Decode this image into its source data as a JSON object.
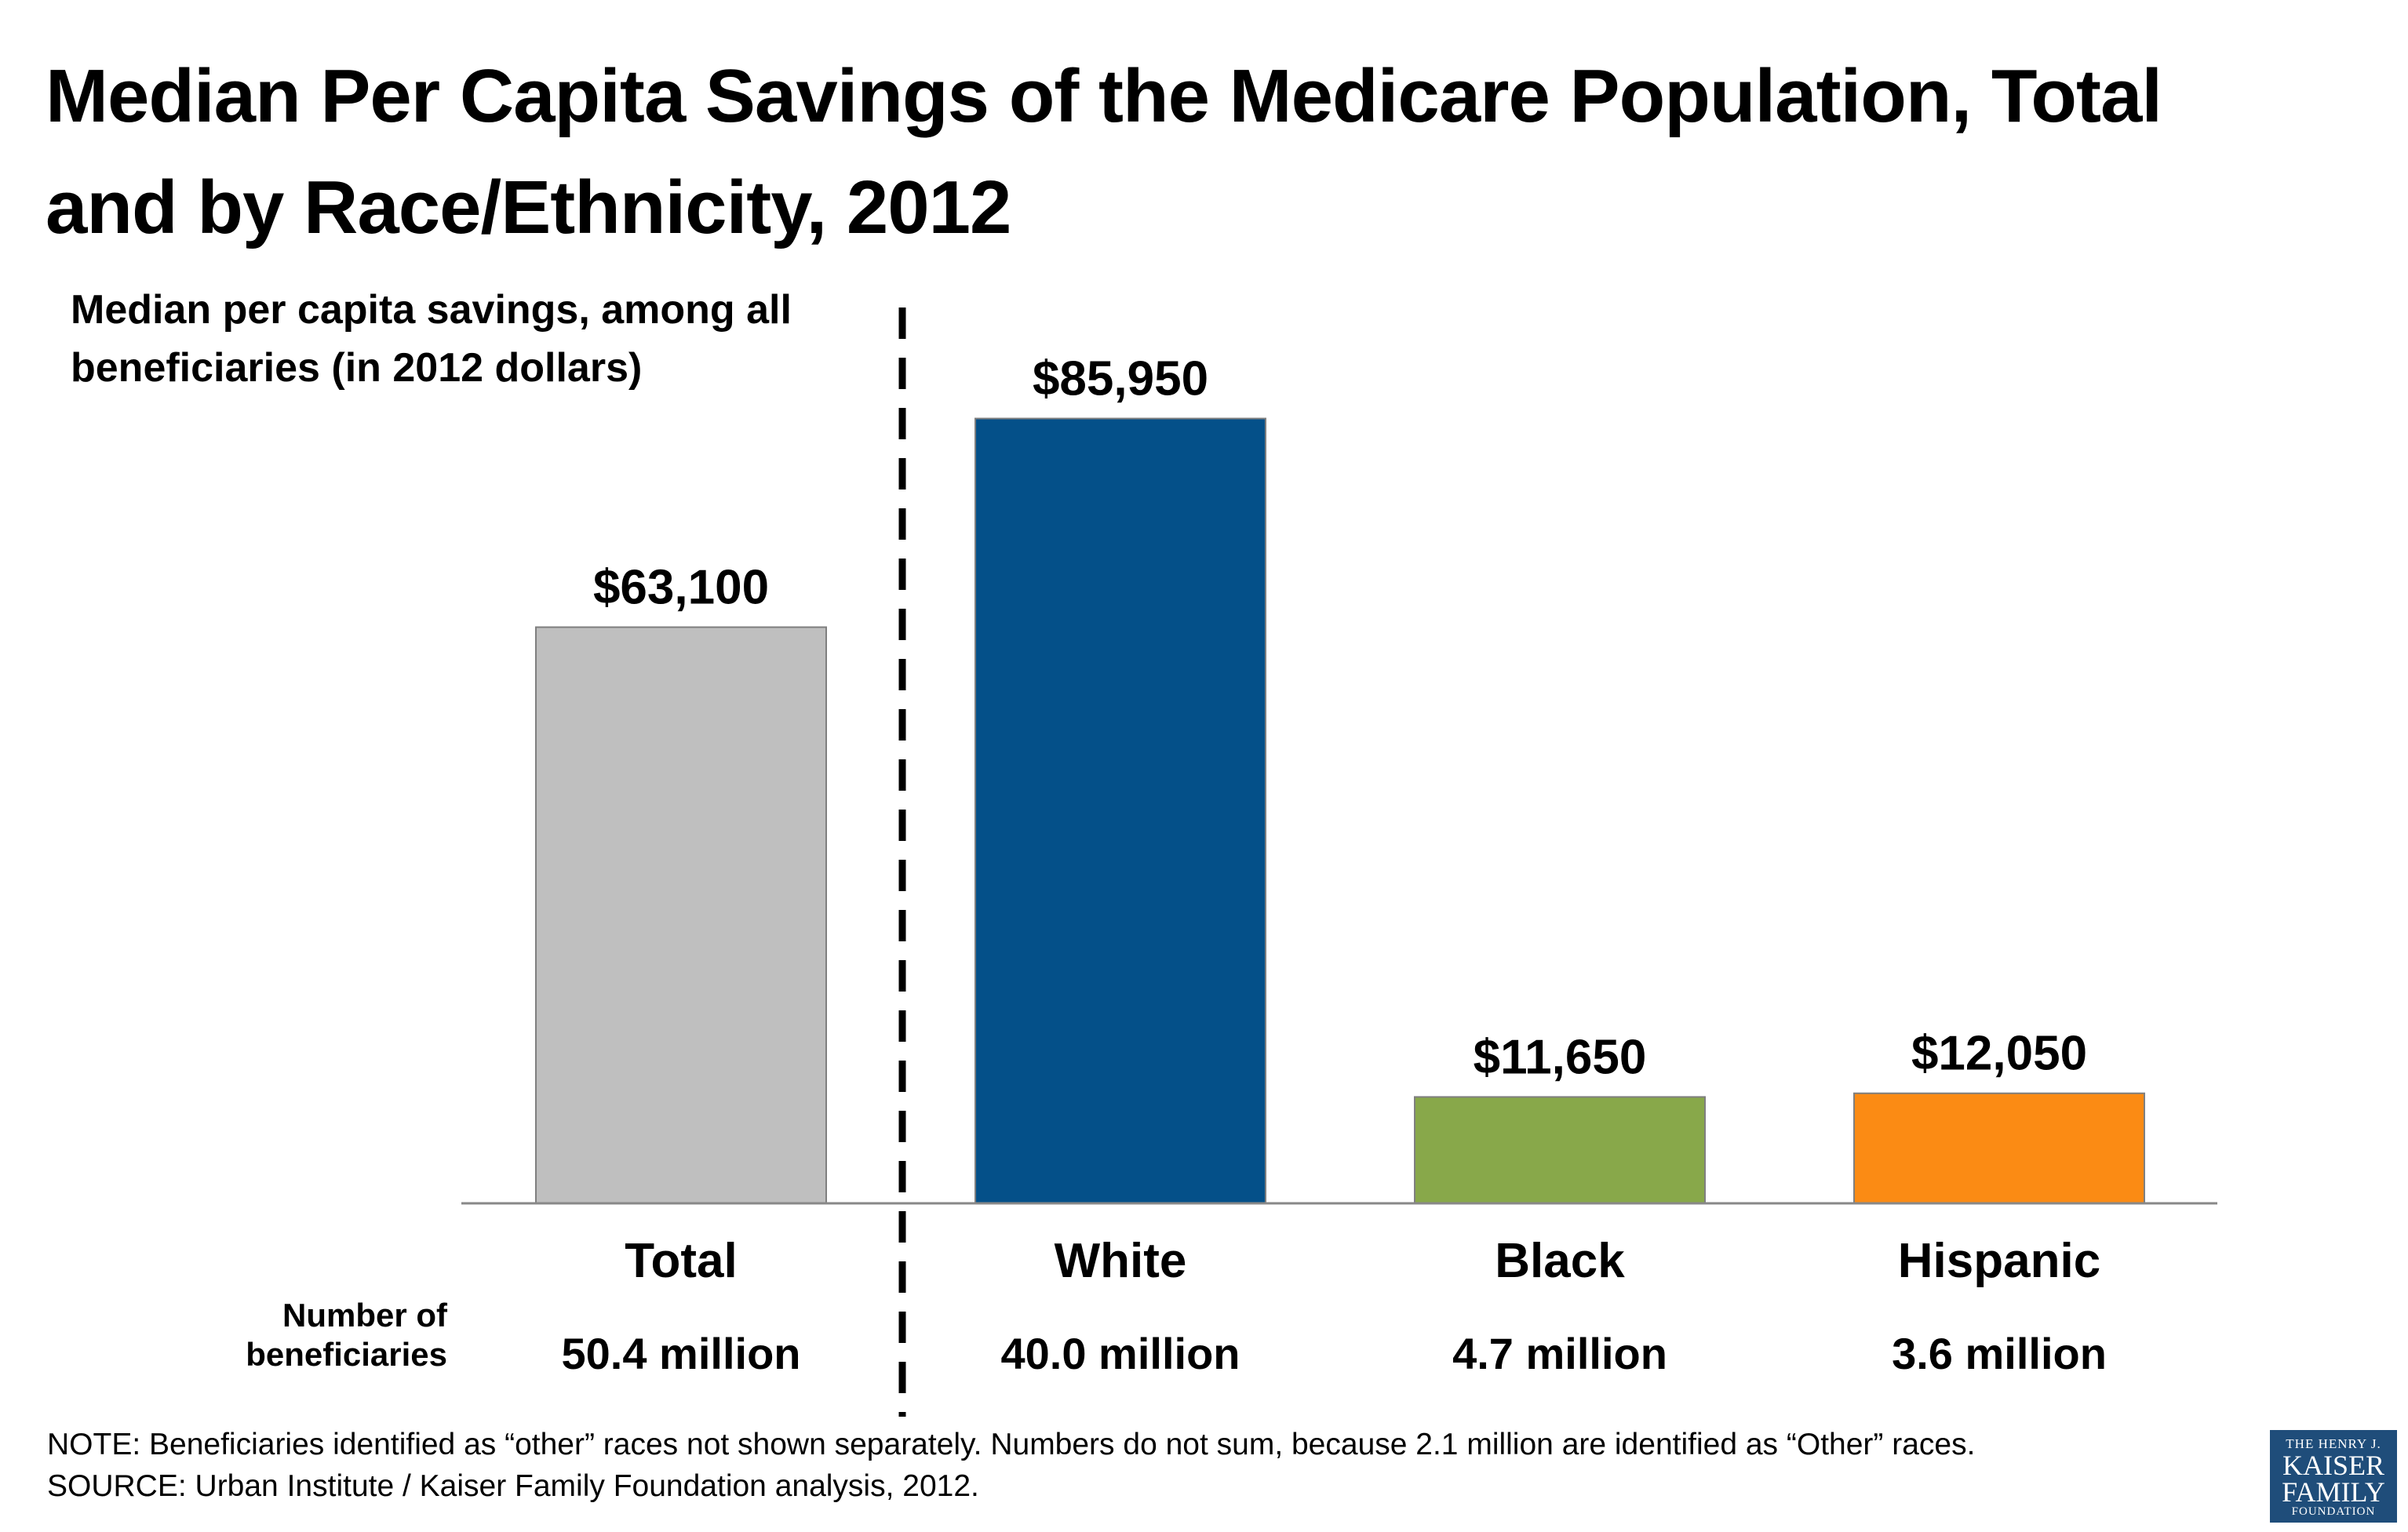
{
  "title": "Median Per Capita Savings of the Medicare Population, Total and by Race/Ethnicity, 2012",
  "chart_data": {
    "type": "bar",
    "title": "Median Per Capita Savings of the Medicare Population, Total and by Race/Ethnicity, 2012",
    "ylabel": "Median per capita savings, among all beneficiaries (in 2012 dollars)",
    "xlabel": "",
    "categories": [
      "Total",
      "White",
      "Black",
      "Hispanic"
    ],
    "values": [
      63100,
      85950,
      11650,
      12050
    ],
    "value_labels": [
      "$63,100",
      "$85,950",
      "$11,650",
      "$12,050"
    ],
    "colors": [
      "#bfbfbf",
      "#045089",
      "#88a84a",
      "#fb8b14"
    ],
    "ylim": [
      0,
      100000
    ],
    "grid": false,
    "legend": "none",
    "separator_after_category": "Total",
    "beneficiaries_label": "Number of beneficiaries",
    "beneficiaries": [
      "50.4 million",
      "40.0 million",
      "4.7 million",
      "3.6 million"
    ]
  },
  "notes": {
    "note": "NOTE: Beneficiaries identified as “other” races not shown separately.  Numbers do not sum, because 2.1 million are identified as “Other” races.",
    "source": "SOURCE: Urban Institute / Kaiser Family Foundation analysis, 2012."
  },
  "logo": {
    "line1": "THE HENRY J.",
    "line2": "KAISER",
    "line3": "FAMILY",
    "line4": "FOUNDATION",
    "color": "#1f4d7a"
  }
}
